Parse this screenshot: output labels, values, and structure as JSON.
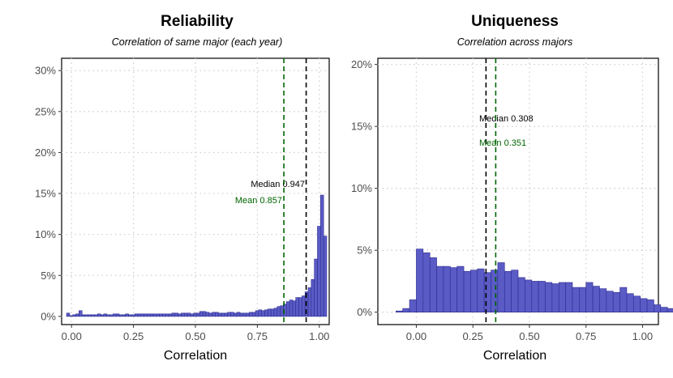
{
  "chart_data": [
    {
      "type": "bar",
      "title": "Reliability",
      "subtitle": "Correlation of same major (each year)",
      "xlabel": "Correlation",
      "ylabel": "",
      "xlim": [
        -0.04,
        1.04
      ],
      "ylim": [
        -0.01,
        0.315
      ],
      "x_ticks": [
        0,
        0.25,
        0.5,
        0.75,
        1
      ],
      "x_tick_labels": [
        "0.00",
        "0.25",
        "0.50",
        "0.75",
        "1.00"
      ],
      "y_ticks": [
        0,
        0.05,
        0.1,
        0.15,
        0.2,
        0.25,
        0.3
      ],
      "y_tick_labels": [
        "0%",
        "5%",
        "10%",
        "15%",
        "20%",
        "25%",
        "30%"
      ],
      "grid": true,
      "bin_width": 0.0125,
      "bins_start": -0.02,
      "values": [
        0.004,
        0.001,
        0.002,
        0.003,
        0.007,
        0.002,
        0.002,
        0.002,
        0.002,
        0.002,
        0.003,
        0.002,
        0.003,
        0.002,
        0.002,
        0.003,
        0.003,
        0.002,
        0.002,
        0.003,
        0.002,
        0.002,
        0.003,
        0.003,
        0.003,
        0.003,
        0.003,
        0.003,
        0.003,
        0.003,
        0.003,
        0.003,
        0.003,
        0.003,
        0.004,
        0.004,
        0.003,
        0.004,
        0.004,
        0.004,
        0.003,
        0.004,
        0.004,
        0.006,
        0.006,
        0.005,
        0.004,
        0.005,
        0.005,
        0.004,
        0.004,
        0.004,
        0.005,
        0.005,
        0.004,
        0.005,
        0.004,
        0.004,
        0.004,
        0.005,
        0.005,
        0.007,
        0.008,
        0.007,
        0.008,
        0.009,
        0.009,
        0.01,
        0.012,
        0.013,
        0.015,
        0.018,
        0.02,
        0.019,
        0.023,
        0.023,
        0.025,
        0.03,
        0.035,
        0.045,
        0.07,
        0.11,
        0.148,
        0.098
      ],
      "reference_lines": [
        {
          "label": "Median 0.947",
          "x": 0.947,
          "color": "#000000"
        },
        {
          "label": "Mean 0.857",
          "x": 0.857,
          "color": "#006400"
        }
      ]
    },
    {
      "type": "bar",
      "title": "Uniqueness",
      "subtitle": "Correlation across majors",
      "xlabel": "Correlation",
      "ylabel": "",
      "xlim": [
        -0.17,
        1.07
      ],
      "ylim": [
        -0.01,
        0.205
      ],
      "x_ticks": [
        0,
        0.25,
        0.5,
        0.75,
        1
      ],
      "x_tick_labels": [
        "0.00",
        "0.25",
        "0.50",
        "0.75",
        "1.00"
      ],
      "y_ticks": [
        0,
        0.05,
        0.1,
        0.15,
        0.2
      ],
      "y_tick_labels": [
        "0%",
        "5%",
        "10%",
        "15%",
        "20%"
      ],
      "grid": true,
      "bin_width": 0.03,
      "bins_start": -0.09,
      "values": [
        0.001,
        0.003,
        0.01,
        0.051,
        0.048,
        0.044,
        0.037,
        0.037,
        0.036,
        0.037,
        0.033,
        0.034,
        0.035,
        0.032,
        0.034,
        0.04,
        0.033,
        0.034,
        0.028,
        0.026,
        0.025,
        0.025,
        0.024,
        0.023,
        0.024,
        0.024,
        0.02,
        0.02,
        0.024,
        0.021,
        0.019,
        0.017,
        0.016,
        0.02,
        0.015,
        0.013,
        0.011,
        0.01,
        0.006,
        0.004,
        0.003
      ],
      "reference_lines": [
        {
          "label": "Median 0.308",
          "x": 0.308,
          "color": "#000000"
        },
        {
          "label": "Mean 0.351",
          "x": 0.351,
          "color": "#006400"
        }
      ]
    }
  ],
  "colors": {
    "bar_fill": "#5b5bc6",
    "bar_stroke": "#2c2c8f",
    "median": "#000000",
    "mean": "#006400",
    "grid": "#d0d0d0",
    "tick_text": "#4d4d4d"
  }
}
